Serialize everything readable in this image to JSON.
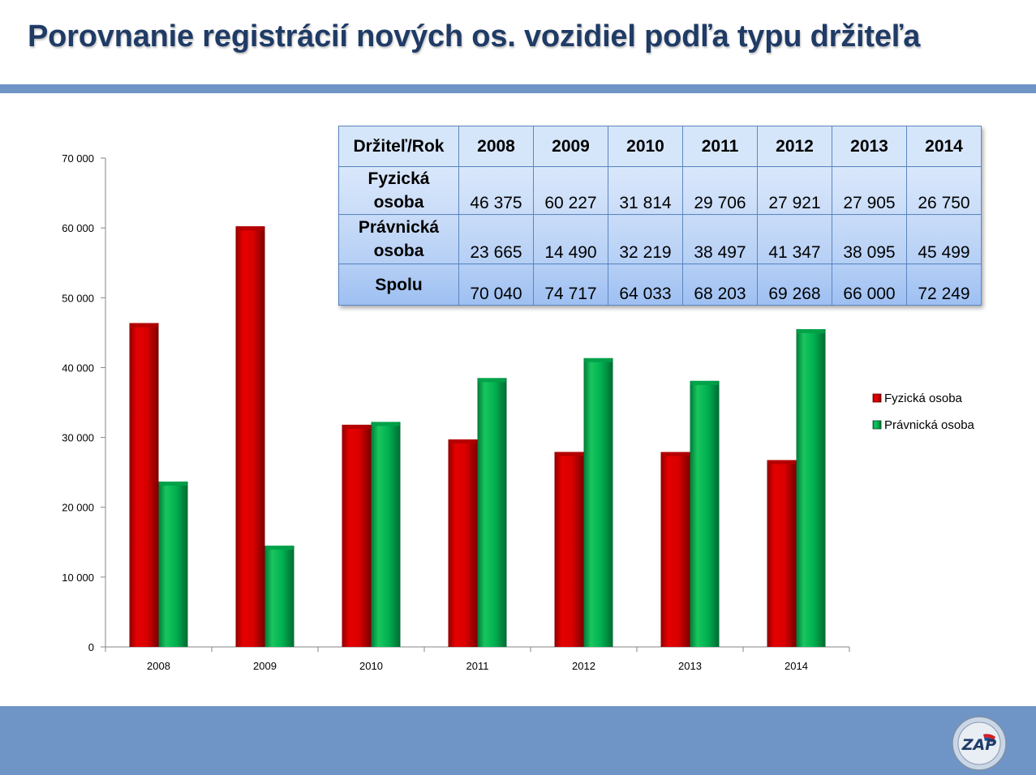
{
  "title": "Porovnanie registrácií nových os. vozidiel podľa typu držiteľa",
  "table": {
    "corner": "Držiteľ/Rok",
    "years": [
      "2008",
      "2009",
      "2010",
      "2011",
      "2012",
      "2013",
      "2014"
    ],
    "rows": [
      {
        "label": "Fyzická osoba",
        "values": [
          "46 375",
          "60 227",
          "31 814",
          "29 706",
          "27 921",
          "27 905",
          "26 750"
        ]
      },
      {
        "label": "Právnická osoba",
        "values": [
          "23 665",
          "14 490",
          "32 219",
          "38 497",
          "41 347",
          "38 095",
          "45 499"
        ]
      },
      {
        "label": "Spolu",
        "values": [
          "70 040",
          "74 717",
          "64 033",
          "68 203",
          "69 268",
          "66 000",
          "72 249"
        ]
      }
    ]
  },
  "chart_data": {
    "type": "bar",
    "title": "",
    "xlabel": "",
    "ylabel": "",
    "categories": [
      "2008",
      "2009",
      "2010",
      "2011",
      "2012",
      "2013",
      "2014"
    ],
    "series": [
      {
        "name": "Fyzická osoba",
        "values": [
          46375,
          60227,
          31814,
          29706,
          27921,
          27905,
          26750
        ],
        "color": "#d40000"
      },
      {
        "name": "Právnická osoba",
        "values": [
          23665,
          14490,
          32219,
          38497,
          41347,
          38095,
          45499
        ],
        "color": "#00b050"
      }
    ],
    "ylim": [
      0,
      70000
    ],
    "yticks": [
      0,
      10000,
      20000,
      30000,
      40000,
      50000,
      60000,
      70000
    ],
    "ytick_labels": [
      "0",
      "10 000",
      "20 000",
      "30 000",
      "40 000",
      "50 000",
      "60 000",
      "70 000"
    ],
    "grid": false,
    "legend_position": "right"
  },
  "colors": {
    "accent_band": "#6f95c6",
    "title_text": "#1f3b66"
  },
  "logo": {
    "icon": "zap-logo-seal",
    "text": "ZAP"
  }
}
